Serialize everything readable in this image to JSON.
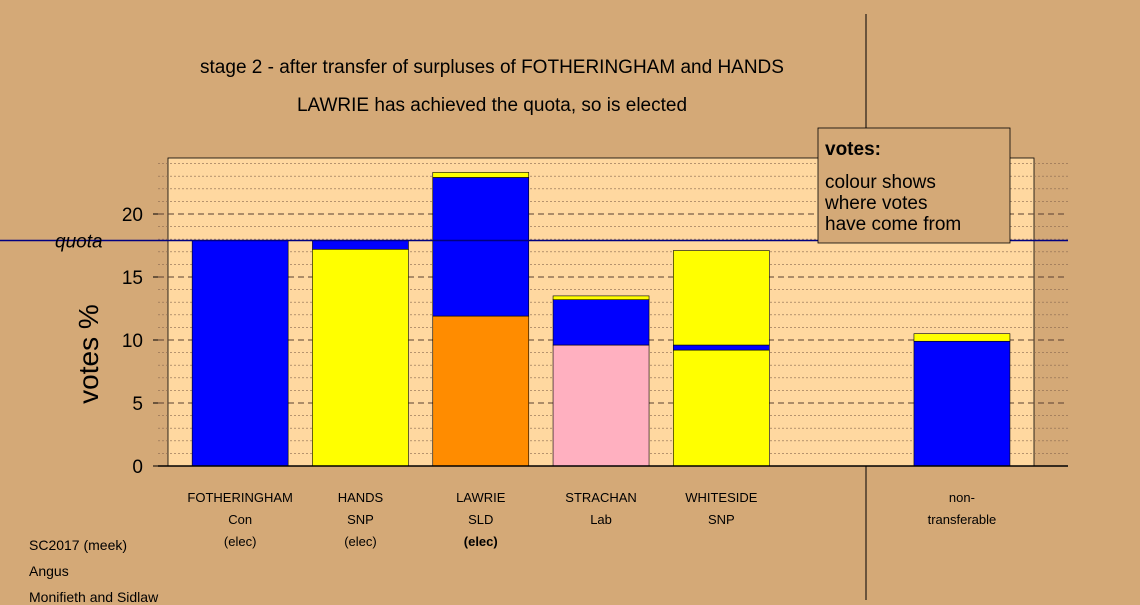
{
  "chart_data": {
    "type": "bar",
    "stacked": true,
    "title": "stage 2 - after transfer of surpluses of FOTHERINGHAM and HANDS",
    "subtitle": "LAWRIE has achieved the quota, so is elected",
    "ylabel": "votes %",
    "ylim": [
      0,
      25
    ],
    "yticks": [
      0,
      5,
      10,
      15,
      20
    ],
    "quota": 17.9,
    "quota_label": "quota",
    "categories": [
      {
        "name": "FOTHERINGHAM",
        "party": "Con",
        "status": "(elec)",
        "bold": false
      },
      {
        "name": "HANDS",
        "party": "SNP",
        "status": "(elec)",
        "bold": false
      },
      {
        "name": "LAWRIE",
        "party": "SLD",
        "status": "(elec)",
        "bold": true
      },
      {
        "name": "STRACHAN",
        "party": "Lab",
        "status": "",
        "bold": false
      },
      {
        "name": "WHITESIDE",
        "party": "SNP",
        "status": "",
        "bold": false
      },
      {
        "name": "",
        "party": "",
        "status": "",
        "bold": false
      },
      {
        "name": "non-",
        "party": "transferable",
        "status": "",
        "bold": false
      }
    ],
    "stacks": [
      [
        {
          "value": 17.9,
          "color": "#0000ff"
        }
      ],
      [
        {
          "value": 17.2,
          "color": "#ffff00"
        },
        {
          "value": 0.7,
          "color": "#0000ff"
        }
      ],
      [
        {
          "value": 11.9,
          "color": "#ff8c00"
        },
        {
          "value": 11.0,
          "color": "#0000ff"
        },
        {
          "value": 0.4,
          "color": "#ffff00"
        }
      ],
      [
        {
          "value": 9.6,
          "color": "#ffb0c0"
        },
        {
          "value": 3.6,
          "color": "#0000ff"
        },
        {
          "value": 0.3,
          "color": "#ffff00"
        }
      ],
      [
        {
          "value": 9.2,
          "color": "#ffff00"
        },
        {
          "value": 0.4,
          "color": "#0000ff"
        },
        {
          "value": 7.5,
          "color": "#ffff00"
        }
      ],
      [],
      [
        {
          "value": 9.9,
          "color": "#0000ff"
        },
        {
          "value": 0.6,
          "color": "#ffff00"
        }
      ]
    ],
    "legend": {
      "title": "votes:",
      "lines": [
        "colour shows",
        "where votes",
        "have come from"
      ],
      "placement": "top-right"
    },
    "grid": true,
    "colors": {
      "background": "#d4a977",
      "plot_area": "#ffd8a0",
      "quota_line": "#000080"
    }
  },
  "footer": {
    "line1": "SC2017 (meek)",
    "line2": "Angus",
    "line3": "Monifieth and Sidlaw"
  }
}
